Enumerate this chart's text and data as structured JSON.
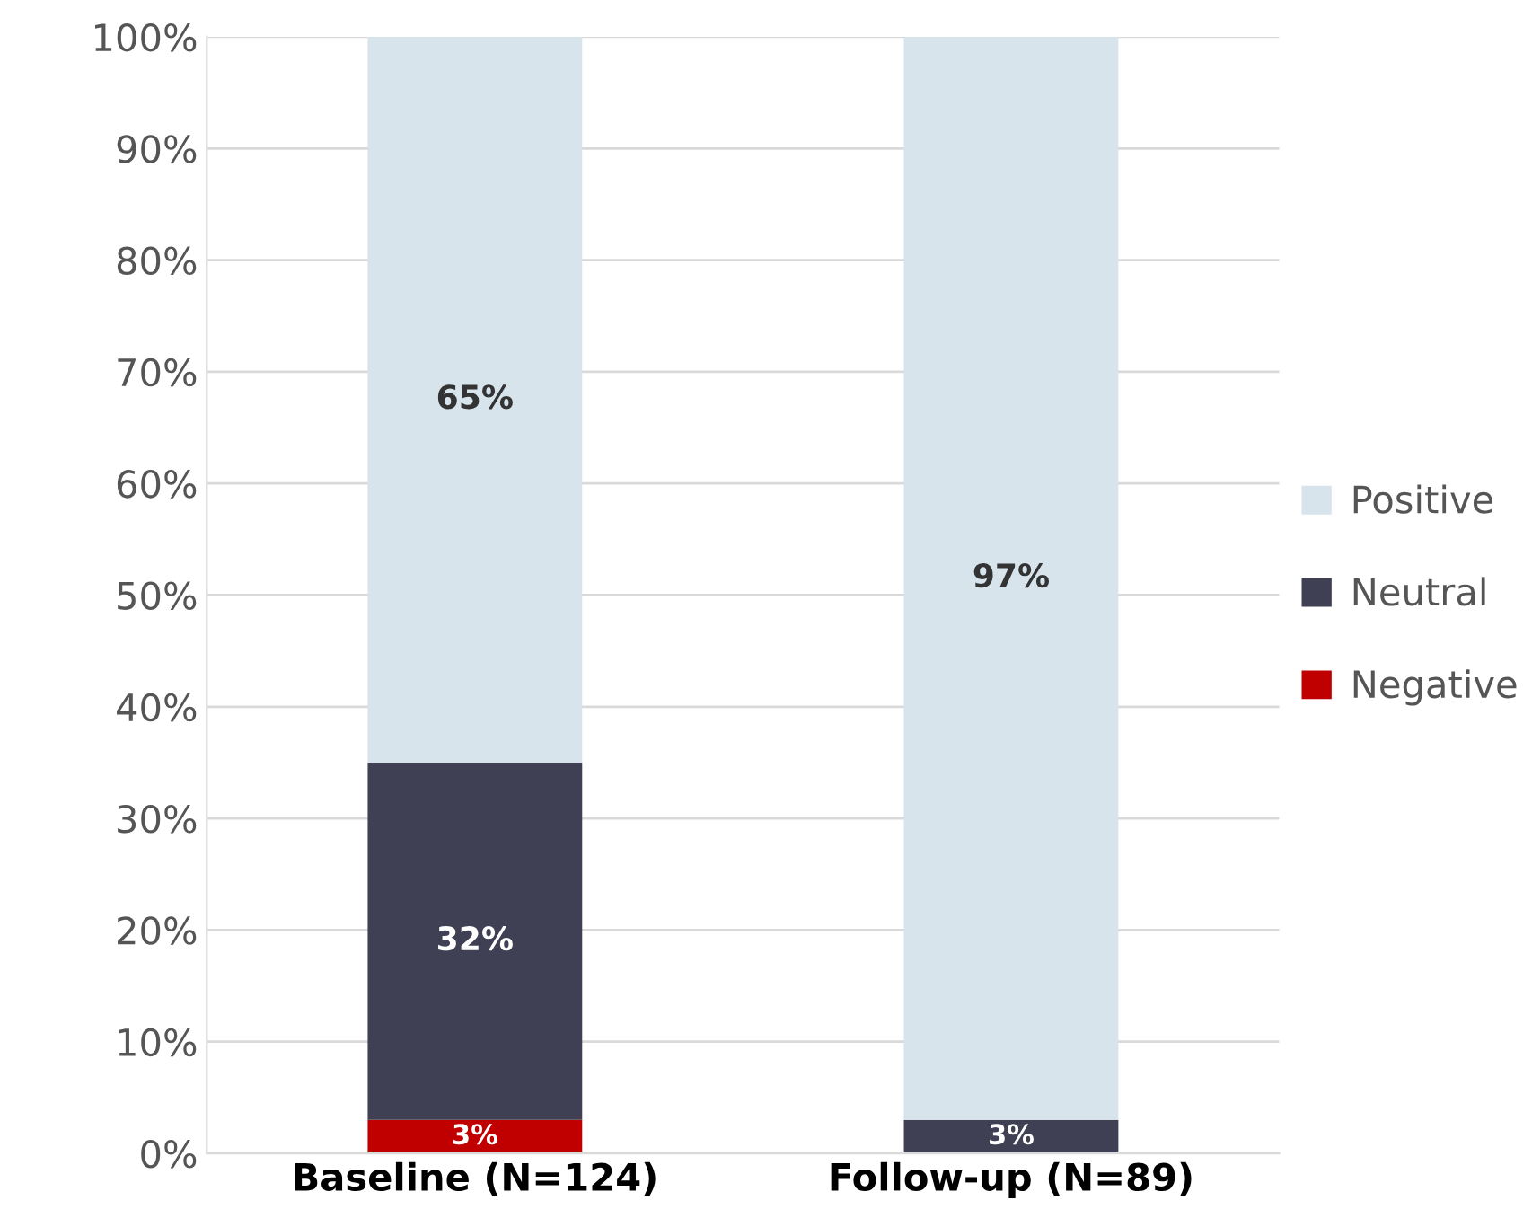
{
  "chart_data": {
    "type": "bar",
    "stacked": true,
    "categories": [
      "Baseline (N=124)",
      "Follow-up (N=89)"
    ],
    "series": [
      {
        "name": "Negative",
        "color": "#c00000",
        "values": [
          3,
          null
        ],
        "value_labels": [
          "3%",
          null
        ]
      },
      {
        "name": "Neutral",
        "color": "#404055",
        "values": [
          32,
          3
        ],
        "value_labels": [
          "32%",
          "3%"
        ]
      },
      {
        "name": "Positive",
        "color": "#d7e4ec",
        "values": [
          65,
          97
        ],
        "value_labels": [
          "65%",
          "97%"
        ]
      }
    ],
    "ylim": [
      0,
      100
    ],
    "yticks": [
      {
        "value": 0,
        "label": "0%"
      },
      {
        "value": 10,
        "label": "10%"
      },
      {
        "value": 20,
        "label": "20%"
      },
      {
        "value": 30,
        "label": "30%"
      },
      {
        "value": 40,
        "label": "40%"
      },
      {
        "value": 50,
        "label": "50%"
      },
      {
        "value": 60,
        "label": "60%"
      },
      {
        "value": 70,
        "label": "70%"
      },
      {
        "value": 80,
        "label": "80%"
      },
      {
        "value": 90,
        "label": "90%"
      },
      {
        "value": 100,
        "label": "100%"
      }
    ],
    "grid": "y",
    "legend": "right"
  }
}
